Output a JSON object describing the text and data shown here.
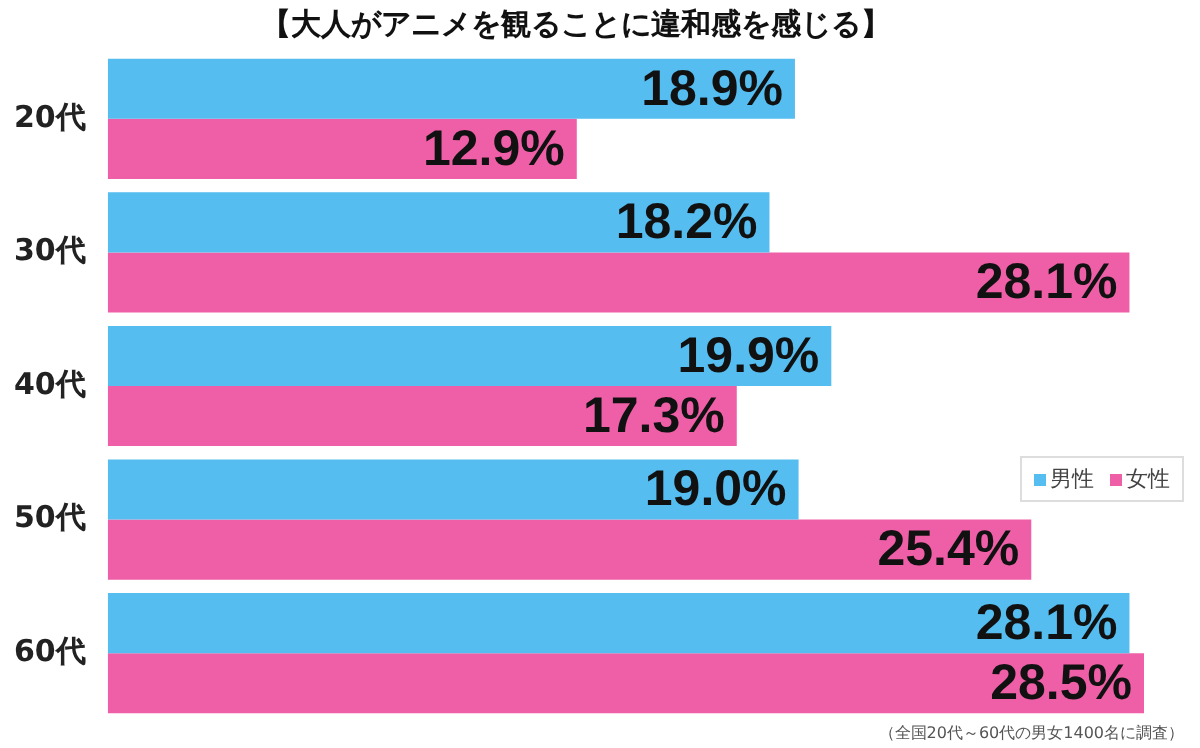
{
  "chart_data": {
    "type": "bar",
    "orientation": "horizontal",
    "title": "【大人がアニメを観ることに違和感を感じる】",
    "categories": [
      "20代",
      "30代",
      "40代",
      "50代",
      "60代"
    ],
    "series": [
      {
        "name": "男性",
        "color": "#55bdf0",
        "values": [
          18.9,
          18.2,
          19.9,
          19.0,
          28.1
        ],
        "value_labels": [
          "18.9%",
          "18.2%",
          "19.9%",
          "19.0%",
          "28.1%"
        ]
      },
      {
        "name": "女性",
        "color": "#ef5fa7",
        "values": [
          12.9,
          28.1,
          17.3,
          25.4,
          28.5
        ],
        "value_labels": [
          "12.9%",
          "28.1%",
          "17.3%",
          "25.4%",
          "28.5%"
        ]
      }
    ],
    "legend": "right",
    "annotations": [
      "（全国20代～60代の男女1400名に調査）"
    ]
  }
}
